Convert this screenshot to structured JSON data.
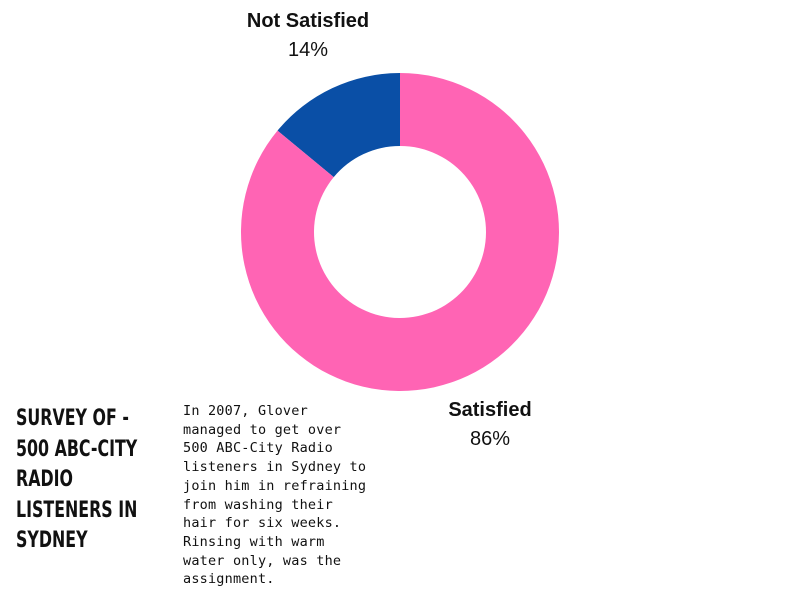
{
  "chart_data": {
    "type": "pie",
    "variant": "donut",
    "slices": [
      {
        "name": "Not Satisfied",
        "value": 14,
        "label": "14%",
        "color": "#0a4fa6"
      },
      {
        "name": "Satisfied",
        "value": 86,
        "label": "86%",
        "color": "#ff64b4"
      }
    ],
    "legend": "none"
  },
  "title_lines": [
    "SURVEY OF -",
    "500 ABC-CITY",
    "RADIO",
    "LISTENERS IN",
    "SYDNEY"
  ],
  "description_lines": [
    "In 2007, Glover",
    "managed to get over",
    "500 ABC-City Radio",
    "listeners in Sydney to",
    "join him in refraining",
    "from washing their",
    "hair for six weeks.",
    "Rinsing with warm",
    "water only, was the",
    "assignment."
  ]
}
